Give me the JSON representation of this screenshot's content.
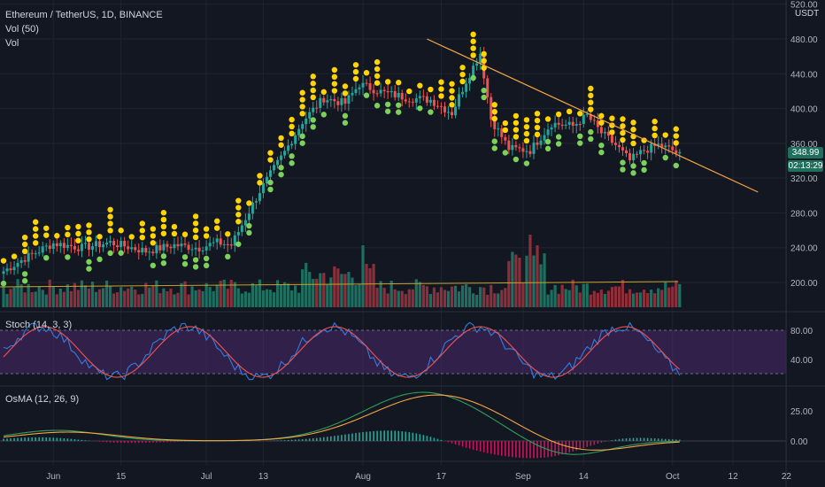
{
  "header": {
    "symbol": "Ethereum / TetherUS, 1D, BINANCE",
    "vol50": "Vol (50)",
    "vol": "Vol",
    "currency": "USDT"
  },
  "stoch_label": "Stoch (14, 3, 3)",
  "osma_label": "OsMA (12, 26, 9)",
  "price_tag": "348.99",
  "countdown_tag": "02:13:29",
  "colors": {
    "up": "#26a69a",
    "down": "#ef5350",
    "dot_yellow": "#ffd400",
    "dot_green": "#7bd15a",
    "trend": "#f5a442",
    "stoch_bg": "#4a2a6b",
    "macd": "#2e9e5b",
    "signal": "#f5a442"
  },
  "chart_data": [
    {
      "type": "candlestick",
      "x_ticks": [
        "Jun",
        "15",
        "Jul",
        "13",
        "Aug",
        "17",
        "Sep",
        "14",
        "Oct",
        "12",
        "22"
      ],
      "y_ticks": [
        200,
        240,
        280,
        320,
        360,
        400,
        440,
        480,
        520
      ],
      "ylim": [
        160,
        525
      ],
      "anchors_close": [
        [
          0,
          213
        ],
        [
          6,
          228
        ],
        [
          14,
          245
        ],
        [
          22,
          240
        ],
        [
          30,
          246
        ],
        [
          40,
          236
        ],
        [
          48,
          243
        ],
        [
          55,
          240
        ],
        [
          60,
          246
        ],
        [
          64,
          243
        ],
        [
          72,
          305
        ],
        [
          79,
          350
        ],
        [
          84,
          385
        ],
        [
          90,
          412
        ],
        [
          96,
          406
        ],
        [
          100,
          428
        ],
        [
          107,
          418
        ],
        [
          114,
          412
        ],
        [
          120,
          410
        ],
        [
          126,
          395
        ],
        [
          130,
          432
        ],
        [
          134,
          464
        ],
        [
          137,
          388
        ],
        [
          142,
          354
        ],
        [
          148,
          352
        ],
        [
          154,
          383
        ],
        [
          160,
          380
        ],
        [
          164,
          392
        ],
        [
          168,
          372
        ],
        [
          172,
          358
        ],
        [
          176,
          340
        ],
        [
          180,
          352
        ],
        [
          184,
          358
        ],
        [
          188,
          352
        ],
        [
          190,
          346
        ]
      ],
      "trendline_price": [
        [
          119,
          480
        ],
        [
          212,
          304
        ]
      ]
    },
    {
      "type": "bar",
      "name": "Vol",
      "moving_average": "Vol (50)"
    },
    {
      "type": "line",
      "name": "Stoch (14, 3, 3)",
      "y_ticks": [
        40,
        80
      ]
    },
    {
      "type": "bar",
      "name": "OsMA (12, 26, 9)",
      "y_ticks": [
        0,
        25
      ]
    }
  ]
}
